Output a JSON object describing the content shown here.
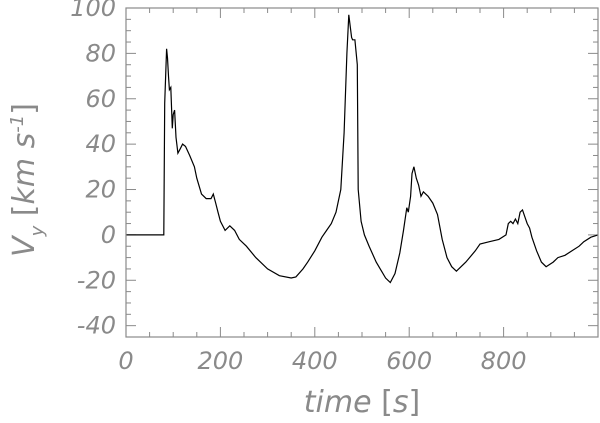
{
  "chart_data": {
    "type": "line",
    "title": "",
    "xlabel": "time [s]",
    "ylabel": "V_y [km s^-1]",
    "ylabel_parts": {
      "v": "V",
      "sub": "y",
      "open": "[",
      "unit1": "km",
      "unit2": "s",
      "exp": "-1",
      "close": "]"
    },
    "xlabel_parts": {
      "var": "time",
      "open": "[",
      "unit": "s",
      "close": "]"
    },
    "xlim": [
      0,
      1000
    ],
    "ylim": [
      -45,
      100
    ],
    "x_ticks": [
      0,
      200,
      400,
      600,
      800
    ],
    "y_ticks": [
      -40,
      -20,
      0,
      20,
      40,
      60,
      80,
      100
    ],
    "grid": false,
    "legend": "none",
    "line_color": "#000000",
    "axis_color": "#8a8a8a",
    "series": [
      {
        "x": [
          0,
          75,
          78,
          80,
          82,
          86,
          88,
          90,
          92,
          95,
          98,
          100,
          103,
          106,
          110,
          115,
          120,
          126,
          135,
          145,
          150,
          160,
          170,
          180,
          185,
          190,
          195,
          200,
          210,
          220,
          230,
          240,
          255,
          275,
          300,
          325,
          350,
          360,
          375,
          385,
          400,
          415,
          425,
          435,
          445,
          455,
          462,
          468,
          472,
          475,
          478,
          480,
          485,
          490,
          492,
          498,
          505,
          515,
          530,
          550,
          560,
          570,
          580,
          588,
          595,
          598,
          603,
          606,
          610,
          615,
          620,
          625,
          630,
          640,
          650,
          660,
          670,
          680,
          690,
          700,
          720,
          740,
          750,
          770,
          790,
          805,
          810,
          815,
          820,
          825,
          830,
          835,
          840,
          845,
          850,
          855,
          860,
          870,
          880,
          890,
          905,
          915,
          930,
          945,
          960,
          970,
          985,
          1000
        ],
        "y": [
          0,
          0,
          0,
          0,
          58,
          82,
          78,
          70,
          64,
          65,
          47,
          53,
          55,
          43,
          36,
          38,
          40,
          39,
          35,
          30,
          25,
          18,
          16,
          16,
          18,
          14,
          10,
          6,
          2,
          4,
          2,
          -2,
          -5,
          -10,
          -15,
          -18,
          -19,
          -18.5,
          -15,
          -12,
          -7,
          -1,
          2,
          5,
          10,
          20,
          45,
          80,
          97,
          92,
          87,
          86,
          86,
          75,
          20,
          6,
          0,
          -5,
          -12,
          -19,
          -21,
          -17,
          -8,
          2,
          12,
          10,
          17,
          27,
          30,
          25,
          22,
          17,
          19,
          17,
          14,
          9,
          -2,
          -10,
          -14,
          -16,
          -12,
          -7,
          -4,
          -3,
          -2,
          0,
          5,
          6,
          5,
          7,
          5,
          10,
          11,
          8,
          5,
          3,
          -1,
          -7,
          -12,
          -14,
          -12,
          -10,
          -9,
          -7,
          -5,
          -3,
          -1,
          0
        ]
      }
    ]
  }
}
